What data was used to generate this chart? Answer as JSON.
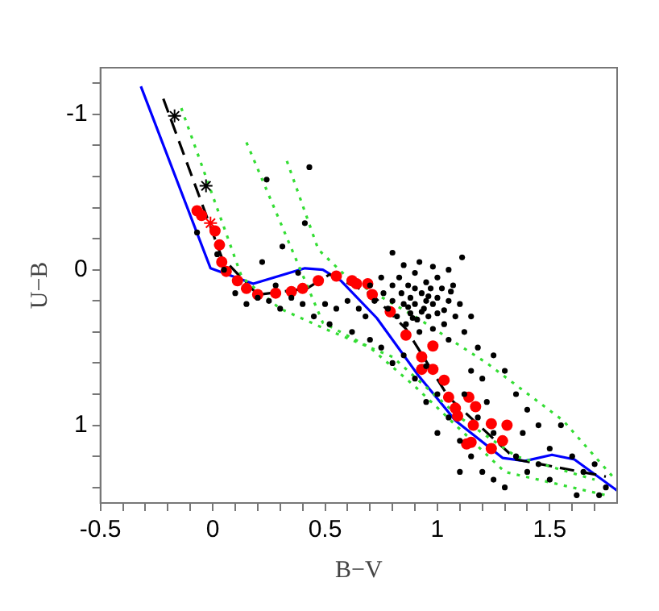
{
  "chart_data": {
    "type": "scatter",
    "xlabel": "B−V",
    "ylabel": "U−B",
    "xlim": [
      -0.5,
      1.8
    ],
    "ylim": [
      1.5,
      -1.3
    ],
    "xticks": [
      -0.5,
      {
        "value": -0.4,
        "label": null
      },
      {
        "value": -0.3,
        "label": null
      },
      {
        "value": -0.2,
        "label": null
      },
      {
        "value": -0.1,
        "label": null
      },
      0,
      {
        "value": 0.1,
        "label": null
      },
      {
        "value": 0.2,
        "label": null
      },
      {
        "value": 0.3,
        "label": null
      },
      {
        "value": 0.4,
        "label": null
      },
      0.5,
      {
        "value": 0.6,
        "label": null
      },
      {
        "value": 0.7,
        "label": null
      },
      {
        "value": 0.8,
        "label": null
      },
      {
        "value": 0.9,
        "label": null
      },
      1,
      {
        "value": 1.1,
        "label": null
      },
      {
        "value": 1.2,
        "label": null
      },
      {
        "value": 1.3,
        "label": null
      },
      {
        "value": 1.4,
        "label": null
      },
      1.5,
      {
        "value": 1.6,
        "label": null
      },
      {
        "value": 1.7,
        "label": null
      }
    ],
    "yticks": [
      {
        "value": -1.2,
        "label": null
      },
      -1,
      {
        "value": -0.8,
        "label": null
      },
      {
        "value": -0.6,
        "label": null
      },
      {
        "value": -0.4,
        "label": null
      },
      {
        "value": -0.2,
        "label": null
      },
      0,
      {
        "value": 0.2,
        "label": null
      },
      {
        "value": 0.4,
        "label": null
      },
      {
        "value": 0.6,
        "label": null
      },
      {
        "value": 0.8,
        "label": null
      },
      1,
      {
        "value": 1.2,
        "label": null
      },
      {
        "value": 1.4,
        "label": null
      }
    ],
    "grid": false,
    "legend": false,
    "series": [
      {
        "marker": "circle",
        "color": "#000000",
        "x": [
          0.7,
          0.72,
          0.75,
          0.76,
          0.78,
          0.8,
          0.8,
          0.82,
          0.83,
          0.84,
          0.85,
          0.86,
          0.87,
          0.88,
          0.88,
          0.9,
          0.9,
          0.9,
          0.91,
          0.92,
          0.93,
          0.94,
          0.95,
          0.95,
          0.96,
          0.97,
          0.98,
          0.98,
          1.0,
          1.0,
          1.0,
          1.02,
          1.03,
          1.05,
          1.05,
          1.07,
          1.08,
          1.1,
          1.12,
          1.15,
          1.18,
          0.92,
          0.98,
          1.05,
          0.85,
          0.68,
          0.65,
          0.6,
          0.55,
          0.5,
          0.45,
          0.4,
          0.52,
          0.62,
          0.7,
          0.75,
          0.8,
          0.85,
          0.9,
          0.95,
          0.95,
          1.0,
          1.05,
          1.0,
          1.1,
          1.15,
          1.2,
          1.25,
          1.1,
          1.3,
          1.2,
          1.25,
          1.3,
          1.35,
          1.4,
          1.45,
          1.38,
          1.5,
          1.55,
          1.6,
          1.65,
          1.7,
          1.75,
          1.72,
          1.62,
          1.45,
          1.35,
          1.4,
          1.5,
          1.25,
          1.18,
          1.12,
          1.15,
          1.22,
          0.35,
          0.3,
          0.25,
          0.2,
          0.15,
          0.1,
          0.28,
          0.22,
          0.43,
          0.24,
          0.41,
          0.31,
          -0.07,
          0.8,
          1.11,
          0.38,
          0.02,
          0.05,
          0.93,
          0.87,
          1.03,
          0.96,
          0.89,
          1.06
        ],
        "values": [
          0.1,
          0.2,
          0.05,
          0.15,
          0.25,
          0.1,
          0.2,
          0.3,
          0.05,
          0.15,
          0.22,
          0.35,
          0.1,
          0.18,
          0.28,
          0.02,
          0.12,
          0.22,
          0.32,
          0.4,
          0.15,
          0.25,
          0.08,
          0.2,
          0.3,
          0.12,
          0.22,
          0.38,
          0.05,
          0.18,
          0.28,
          0.12,
          0.35,
          0.2,
          0.45,
          0.1,
          0.3,
          0.22,
          0.4,
          0.3,
          0.5,
          -0.05,
          -0.02,
          0.0,
          -0.03,
          0.3,
          0.25,
          0.2,
          0.25,
          0.22,
          0.3,
          0.22,
          0.35,
          0.4,
          0.45,
          0.5,
          0.6,
          0.55,
          0.7,
          0.62,
          0.85,
          0.8,
          0.95,
          1.05,
          1.1,
          1.2,
          1.3,
          1.35,
          1.3,
          1.4,
          0.7,
          0.55,
          0.65,
          0.8,
          0.9,
          1.0,
          1.05,
          1.15,
          1.0,
          1.2,
          1.3,
          1.25,
          1.4,
          1.45,
          1.45,
          1.25,
          1.2,
          1.3,
          1.35,
          1.05,
          0.95,
          0.8,
          0.65,
          0.85,
          0.18,
          0.25,
          0.2,
          0.18,
          0.22,
          0.15,
          0.1,
          -0.05,
          -0.66,
          -0.58,
          -0.3,
          -0.15,
          -0.24,
          -0.11,
          -0.08,
          0.02,
          -0.1,
          0.0,
          0.27,
          0.24,
          0.26,
          0.17,
          0.31,
          0.14
        ]
      },
      {
        "marker": "cross",
        "color": "#000000",
        "x": [
          -0.17,
          -0.03
        ],
        "values": [
          -0.99,
          -0.54
        ]
      },
      {
        "marker": "cross",
        "color": "#ff0000",
        "x": [
          -0.01
        ],
        "values": [
          -0.3
        ]
      },
      {
        "marker": "circle",
        "color": "#ff0000",
        "x": [
          -0.07,
          -0.05,
          0.01,
          0.03,
          0.04,
          0.06,
          0.11,
          0.15,
          0.2,
          0.28,
          0.35,
          0.4,
          0.47,
          0.55,
          0.62,
          0.69,
          0.64,
          0.71,
          0.79,
          0.86,
          0.93,
          0.98,
          1.03,
          1.09,
          1.14,
          1.17,
          1.16,
          1.15,
          1.24,
          1.31,
          1.29,
          1.24,
          1.13,
          1.08,
          1.05,
          0.98,
          0.93
        ],
        "values": [
          -0.38,
          -0.35,
          -0.25,
          -0.16,
          -0.05,
          0.01,
          0.07,
          0.12,
          0.16,
          0.15,
          0.14,
          0.12,
          0.07,
          0.04,
          0.07,
          0.09,
          0.09,
          0.16,
          0.27,
          0.42,
          0.56,
          0.64,
          0.71,
          0.94,
          0.82,
          0.88,
          1.0,
          1.11,
          0.99,
          1.0,
          1.1,
          1.15,
          1.12,
          0.89,
          0.82,
          0.49,
          0.64
        ]
      },
      {
        "type": "line",
        "marker": "none",
        "line_style": "dotted",
        "color": "#33dd33",
        "x": [
          -0.14,
          0.13,
          0.3,
          0.5,
          0.8,
          1.1,
          1.35,
          1.7
        ],
        "values": [
          -1.04,
          0.05,
          0.25,
          0.38,
          0.56,
          0.95,
          1.2,
          1.35
        ]
      },
      {
        "type": "line",
        "marker": "none",
        "line_style": "dotted",
        "color": "#33dd33",
        "x": [
          0.15,
          0.49,
          0.7,
          0.9,
          1.3,
          1.75
        ],
        "values": [
          -0.82,
          0.34,
          0.5,
          0.75,
          1.3,
          1.45
        ]
      },
      {
        "type": "line",
        "marker": "none",
        "line_style": "dotted",
        "color": "#33dd33",
        "x": [
          0.33,
          0.47,
          0.6,
          0.9,
          1.22,
          1.56,
          1.78
        ],
        "values": [
          -0.7,
          -0.13,
          0.05,
          0.3,
          0.6,
          0.97,
          1.33
        ]
      },
      {
        "type": "line",
        "marker": "none",
        "line_style": "dashed",
        "color": "#000000",
        "x": [
          -0.22,
          0.04,
          0.2,
          0.42,
          0.52,
          0.71,
          0.86,
          1.05,
          1.35,
          1.75
        ],
        "values": [
          -1.1,
          -0.08,
          0.16,
          0.12,
          0.03,
          0.16,
          0.38,
          0.82,
          1.22,
          1.33
        ]
      },
      {
        "type": "line",
        "marker": "none",
        "line_style": "solid",
        "color": "#0000ff",
        "x": [
          -0.32,
          -0.01,
          0.18,
          0.41,
          0.49,
          0.57,
          0.73,
          0.91,
          1.08,
          1.29,
          1.39,
          1.51,
          1.61,
          1.8
        ],
        "values": [
          -1.18,
          -0.01,
          0.09,
          -0.01,
          0.0,
          0.07,
          0.31,
          0.67,
          0.97,
          1.21,
          1.23,
          1.19,
          1.22,
          1.42
        ]
      }
    ]
  }
}
